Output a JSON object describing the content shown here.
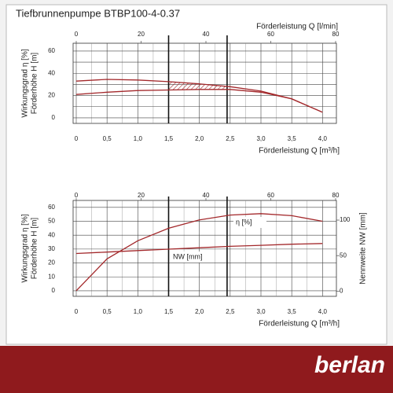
{
  "chart_data": [
    {
      "type": "line",
      "title": "Tiefbrunnenpumpe BTBP100-4-0.37",
      "x2label": "Förderleistung Q [l/min]",
      "x2lim": [
        0,
        80
      ],
      "x2ticks": [
        0,
        20,
        40,
        60,
        80
      ],
      "xlabel": "Förderleistung Q [m³/h]",
      "xlim": [
        0,
        4.2
      ],
      "xticks": [
        0,
        {
          "value": 0.5,
          "label": "0,5"
        },
        {
          "value": 1,
          "label": "1,0"
        },
        {
          "value": 1.5,
          "label": "1,5"
        },
        {
          "value": 2,
          "label": "2,0"
        },
        {
          "value": 2.5,
          "label": "2,5"
        },
        {
          "value": 3,
          "label": "3,0"
        },
        {
          "value": 3.5,
          "label": "3,5"
        },
        {
          "value": 4,
          "label": "4,0"
        }
      ],
      "ylabel": [
        "Wirkungsgrad η [%]",
        "Förderhöhe H [m]"
      ],
      "ylim": [
        -5,
        67
      ],
      "yticks": [
        0,
        20,
        40,
        60
      ],
      "grid": true,
      "range": [
        1.5,
        2.45
      ],
      "hatched": true,
      "x": [
        0,
        0.5,
        1,
        1.5,
        2,
        2.5,
        3,
        3.5,
        4
      ],
      "series": [
        {
          "color": "#a3282b",
          "values": [
            33,
            34.5,
            34,
            32.5,
            30.5,
            28,
            24,
            17,
            5
          ]
        },
        {
          "color": "#a3282b",
          "values": [
            21,
            23,
            24.5,
            25,
            25.5,
            25.5,
            23,
            17,
            5
          ]
        }
      ]
    },
    {
      "type": "line",
      "x2lim": [
        0,
        80
      ],
      "x2ticks": [
        0,
        20,
        40,
        60,
        80
      ],
      "xlabel": "Förderleistung Q [m³/h]",
      "xlim": [
        0,
        4.2
      ],
      "xticks": [
        0,
        {
          "value": 0.5,
          "label": "0,5"
        },
        {
          "value": 1,
          "label": "1,0"
        },
        {
          "value": 1.5,
          "label": "1,5"
        },
        {
          "value": 2,
          "label": "2,0"
        },
        {
          "value": 2.5,
          "label": "2,5"
        },
        {
          "value": 3,
          "label": "3,0"
        },
        {
          "value": 3.5,
          "label": "3,5"
        },
        {
          "value": 4,
          "label": "4,0"
        }
      ],
      "ylabel": [
        "Wirkungsgrad η [%]",
        "Förderhöhe H [m]"
      ],
      "ylim": [
        -4,
        65
      ],
      "yticks": [
        0,
        10,
        20,
        30,
        40,
        50,
        60
      ],
      "y2label": "Nennweite NW [mm]",
      "y2lim": [
        -7.4,
        127.7
      ],
      "y2ticks": [
        0,
        50,
        100
      ],
      "grid": true,
      "range": [
        1.5,
        2.45
      ],
      "annotations": [
        "η [%]",
        "NW [mm]"
      ],
      "x": [
        0,
        0.5,
        1,
        1.5,
        2,
        2.5,
        3,
        3.5,
        4
      ],
      "series": [
        {
          "color": "#a3282b",
          "values": [
            0,
            23,
            36,
            45,
            51,
            54.5,
            55.5,
            54,
            50
          ]
        },
        {
          "color": "#a3282b",
          "axis": "y2",
          "values": [
            53,
            55,
            57,
            59,
            61,
            63,
            64.5,
            66,
            67
          ]
        }
      ]
    }
  ],
  "footer": {
    "brand": "berlan"
  }
}
